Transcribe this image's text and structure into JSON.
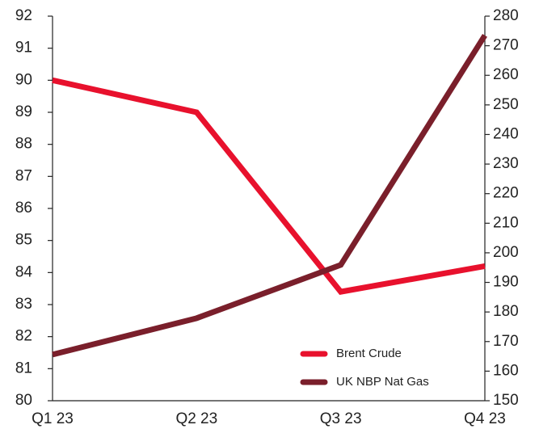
{
  "chart_data": {
    "type": "line",
    "categories": [
      "Q1 23",
      "Q2 23",
      "Q3 23",
      "Q4 23"
    ],
    "series": [
      {
        "name": "Brent Crude",
        "color": "#e8112d",
        "values": [
          90,
          89,
          83.4,
          84.2
        ]
      },
      {
        "name": "UK NBP Nat Gas",
        "color": "#7a1f2b",
        "values": [
          165.6,
          177.9,
          195.9,
          273.5
        ],
        "axis": "y2"
      }
    ],
    "ylim": [
      80,
      92
    ],
    "yticks": [
      80,
      81,
      82,
      83,
      84,
      85,
      86,
      87,
      88,
      89,
      90,
      91,
      92
    ],
    "y2lim": [
      150,
      280
    ],
    "y2ticks": [
      150,
      160,
      170,
      180,
      190,
      200,
      210,
      220,
      230,
      240,
      250,
      260,
      270,
      280
    ],
    "legend": "lower right"
  }
}
